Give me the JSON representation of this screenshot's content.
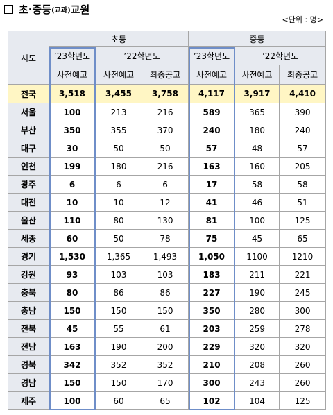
{
  "title": {
    "prefix": "초·중등",
    "subject": "(교과)",
    "suffix": " 교원"
  },
  "unit": "<단위 : 명>",
  "headers": {
    "region": "시도",
    "elementary": "초등",
    "middle": "중등",
    "year23": "’23학년도",
    "year22": "’22학년도",
    "pre_notice": "사전예고",
    "final_notice": "최종공고"
  },
  "rows": [
    {
      "region": "전국",
      "e23": "3,518",
      "e22pre": "3,455",
      "e22fin": "3,758",
      "m23": "4,117",
      "m22pre": "3,917",
      "m22fin": "4,410"
    },
    {
      "region": "서울",
      "e23": "100",
      "e22pre": "213",
      "e22fin": "216",
      "m23": "589",
      "m22pre": "365",
      "m22fin": "390"
    },
    {
      "region": "부산",
      "e23": "350",
      "e22pre": "355",
      "e22fin": "370",
      "m23": "240",
      "m22pre": "180",
      "m22fin": "240"
    },
    {
      "region": "대구",
      "e23": "30",
      "e22pre": "50",
      "e22fin": "50",
      "m23": "57",
      "m22pre": "48",
      "m22fin": "57"
    },
    {
      "region": "인천",
      "e23": "199",
      "e22pre": "180",
      "e22fin": "216",
      "m23": "163",
      "m22pre": "160",
      "m22fin": "205"
    },
    {
      "region": "광주",
      "e23": "6",
      "e22pre": "6",
      "e22fin": "6",
      "m23": "17",
      "m22pre": "58",
      "m22fin": "58"
    },
    {
      "region": "대전",
      "e23": "10",
      "e22pre": "10",
      "e22fin": "12",
      "m23": "41",
      "m22pre": "46",
      "m22fin": "51"
    },
    {
      "region": "울산",
      "e23": "110",
      "e22pre": "80",
      "e22fin": "130",
      "m23": "81",
      "m22pre": "100",
      "m22fin": "125"
    },
    {
      "region": "세종",
      "e23": "60",
      "e22pre": "50",
      "e22fin": "78",
      "m23": "75",
      "m22pre": "45",
      "m22fin": "65"
    },
    {
      "region": "경기",
      "e23": "1,530",
      "e22pre": "1,365",
      "e22fin": "1,493",
      "m23": "1,050",
      "m22pre": "1100",
      "m22fin": "1210"
    },
    {
      "region": "강원",
      "e23": "93",
      "e22pre": "103",
      "e22fin": "103",
      "m23": "183",
      "m22pre": "211",
      "m22fin": "221"
    },
    {
      "region": "충북",
      "e23": "80",
      "e22pre": "86",
      "e22fin": "86",
      "m23": "227",
      "m22pre": "190",
      "m22fin": "245"
    },
    {
      "region": "충남",
      "e23": "150",
      "e22pre": "150",
      "e22fin": "150",
      "m23": "350",
      "m22pre": "280",
      "m22fin": "300"
    },
    {
      "region": "전북",
      "e23": "45",
      "e22pre": "55",
      "e22fin": "61",
      "m23": "203",
      "m22pre": "259",
      "m22fin": "278"
    },
    {
      "region": "전남",
      "e23": "163",
      "e22pre": "190",
      "e22fin": "200",
      "m23": "229",
      "m22pre": "320",
      "m22fin": "320"
    },
    {
      "region": "경북",
      "e23": "342",
      "e22pre": "352",
      "e22fin": "352",
      "m23": "210",
      "m22pre": "208",
      "m22fin": "260"
    },
    {
      "region": "경남",
      "e23": "150",
      "e22pre": "150",
      "e22fin": "170",
      "m23": "300",
      "m22pre": "243",
      "m22fin": "260"
    },
    {
      "region": "제주",
      "e23": "100",
      "e22pre": "60",
      "e22fin": "65",
      "m23": "102",
      "m22pre": "104",
      "m22fin": "125"
    }
  ],
  "colors": {
    "header_bg": "#e7eaf0",
    "total_row_bg": "#fff6c4",
    "highlight_border": "#6f8ec8",
    "grid_line": "#a6a6a6"
  }
}
